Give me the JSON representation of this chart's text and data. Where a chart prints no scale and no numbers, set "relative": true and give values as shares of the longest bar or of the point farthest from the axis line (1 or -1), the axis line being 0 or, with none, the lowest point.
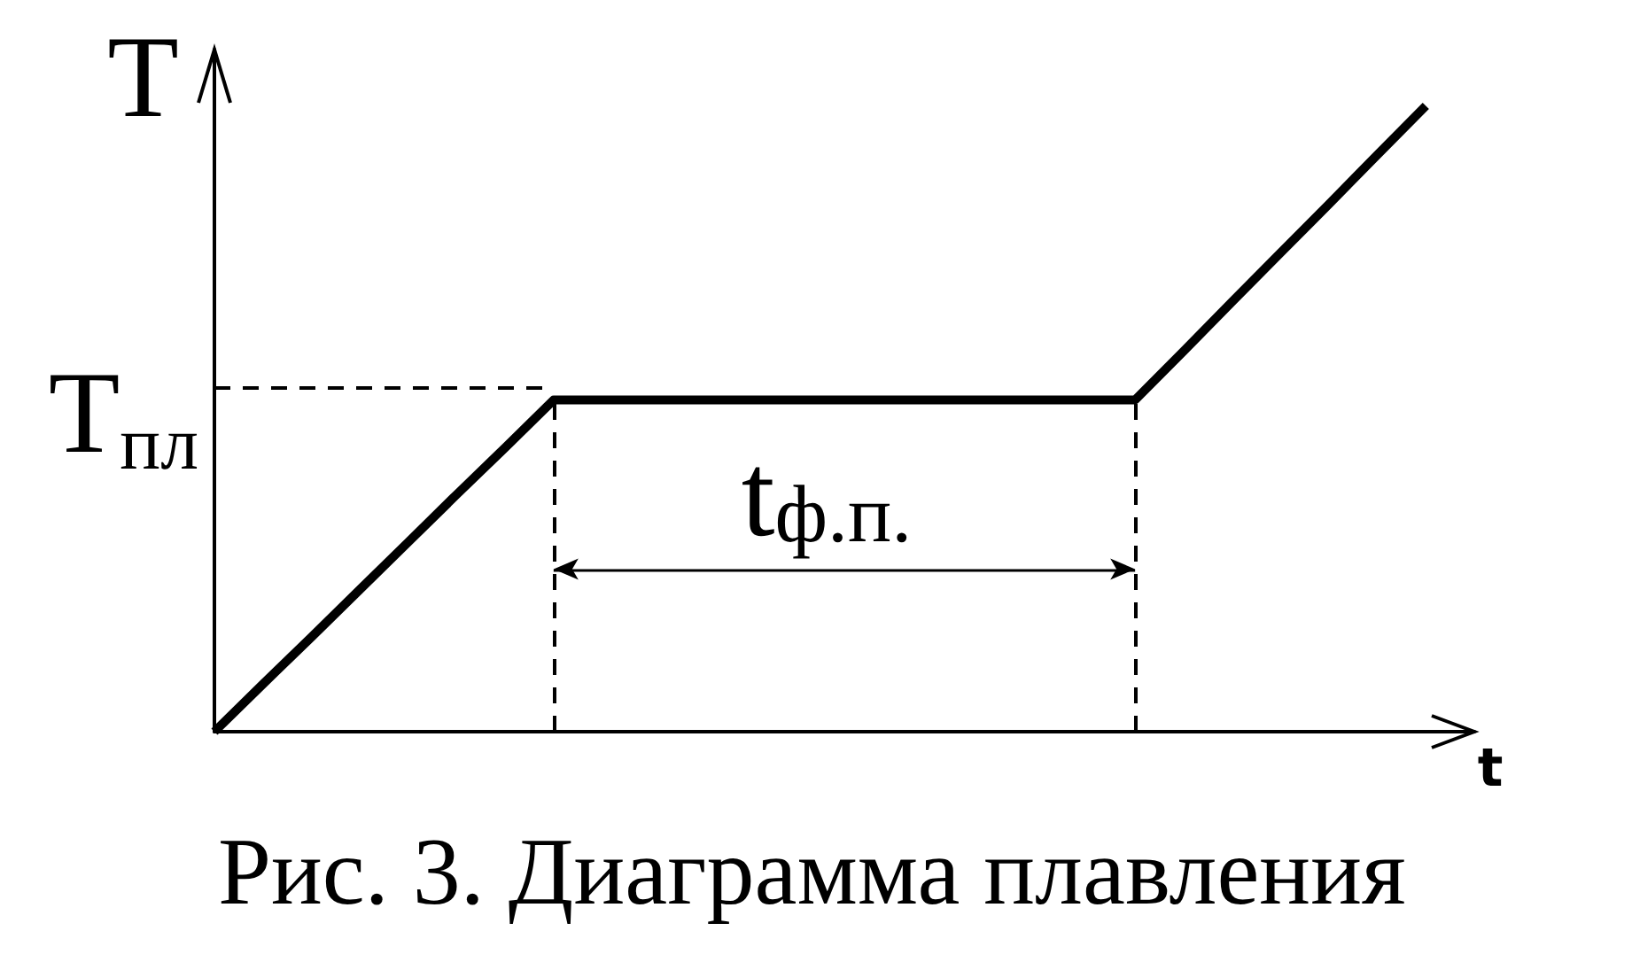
{
  "chart_data": {
    "type": "line",
    "title": "Рис. 3. Диаграмма плавления",
    "xlabel": "t",
    "ylabel": "T",
    "categories": [
      null,
      null,
      null,
      null,
      null,
      null,
      null,
      null,
      null,
      null,
      null,
      null,
      null,
      null,
      null,
      null,
      null,
      null,
      null,
      null,
      null,
      null,
      null,
      null,
      null,
      null
    ],
    "values": [
      0,
      0.076,
      0.151,
      0.227,
      0.303,
      0.379,
      0.454,
      0.53,
      0.53,
      0.53,
      0.53,
      0.53,
      0.53,
      0.53,
      0.53,
      0.53,
      0.53,
      0.53,
      0.53,
      0.53,
      0.608,
      0.687,
      0.765,
      0.843,
      0.922,
      1
    ],
    "color": "#000000",
    "relative": true,
    "marker": "none",
    "line_style": "solid",
    "ref_lines": [
      {
        "axis": "y",
        "value": 0.55,
        "label": "T$_{пл}$",
        "line_style": "dashed",
        "color": "#000000"
      }
    ],
    "annotations": [
      "t$_{ф.п.}$"
    ]
  }
}
